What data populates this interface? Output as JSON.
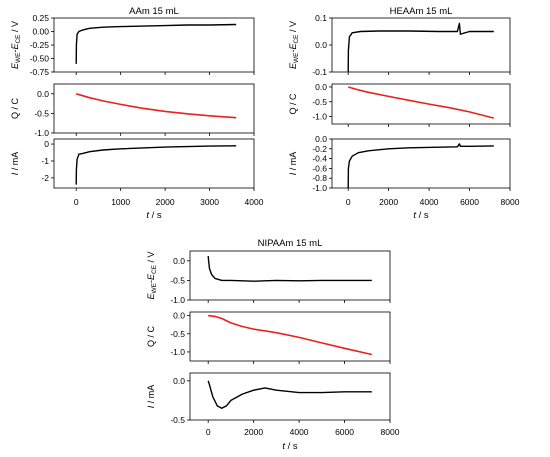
{
  "colors": {
    "potential": "#000000",
    "charge": "#e8231c",
    "current": "#000000",
    "axis": "#000000"
  },
  "chart_data": [
    {
      "title": "AAm 15 mL",
      "xlabel_italic": "t",
      "xlabel_unit": " / s",
      "xlim": [
        -500,
        4000
      ],
      "xticks": [
        0,
        1000,
        2000,
        3000,
        4000
      ],
      "xtick_labels": [
        "0",
        "1000",
        "2000",
        "3000",
        "4000"
      ],
      "panels": [
        {
          "type": "line",
          "quantity": "potential",
          "ylabel": {
            "E1": "E",
            "sub1": "WE",
            "dash": "-",
            "E2": "E",
            "sub2": "CE",
            "unit": " / V"
          },
          "ylim": [
            -0.75,
            0.25
          ],
          "yticks": [
            -0.75,
            -0.5,
            -0.25,
            0,
            0.25
          ],
          "ytick_labels": [
            "-0.75",
            "-0.50",
            "-0.25",
            "0.00",
            "0.25"
          ],
          "points": [
            [
              0,
              -0.6
            ],
            [
              5,
              -0.25
            ],
            [
              20,
              -0.05
            ],
            [
              60,
              0.0
            ],
            [
              150,
              0.03
            ],
            [
              300,
              0.06
            ],
            [
              600,
              0.08
            ],
            [
              1000,
              0.09
            ],
            [
              1500,
              0.1
            ],
            [
              2000,
              0.11
            ],
            [
              2500,
              0.12
            ],
            [
              3000,
              0.12
            ],
            [
              3600,
              0.13
            ]
          ]
        },
        {
          "type": "line",
          "quantity": "charge",
          "ylabel": {
            "text": "Q / C"
          },
          "ylim": [
            -1.0,
            0.25
          ],
          "yticks": [
            -1.0,
            -0.5,
            0.0
          ],
          "ytick_labels": [
            "-1.0",
            "-0.5",
            "0.0"
          ],
          "points": [
            [
              0,
              0.0
            ],
            [
              300,
              -0.1
            ],
            [
              600,
              -0.18
            ],
            [
              1000,
              -0.27
            ],
            [
              1500,
              -0.37
            ],
            [
              2000,
              -0.45
            ],
            [
              2500,
              -0.51
            ],
            [
              3000,
              -0.56
            ],
            [
              3600,
              -0.61
            ]
          ]
        },
        {
          "type": "line",
          "quantity": "current",
          "ylabel": {
            "I": "I",
            "unit": " / mA"
          },
          "ylim": [
            -2.6,
            0.3
          ],
          "yticks": [
            -2,
            -1,
            0
          ],
          "ytick_labels": [
            "-2",
            "-1",
            "0"
          ],
          "points": [
            [
              0,
              -2.4
            ],
            [
              5,
              -1.5
            ],
            [
              20,
              -0.9
            ],
            [
              60,
              -0.6
            ],
            [
              150,
              -0.55
            ],
            [
              300,
              -0.45
            ],
            [
              600,
              -0.35
            ],
            [
              1000,
              -0.28
            ],
            [
              2000,
              -0.18
            ],
            [
              3000,
              -0.12
            ],
            [
              3600,
              -0.1
            ]
          ]
        }
      ]
    },
    {
      "title": "HEAAm 15 mL",
      "xlabel_italic": "t",
      "xlabel_unit": " / s",
      "xlim": [
        -800,
        8000
      ],
      "xticks": [
        0,
        2000,
        4000,
        6000,
        8000
      ],
      "xtick_labels": [
        "0",
        "2000",
        "4000",
        "6000",
        "8000"
      ],
      "panels": [
        {
          "type": "line",
          "quantity": "potential",
          "ylabel": {
            "E1": "E",
            "sub1": "WE",
            "dash": "-",
            "E2": "E",
            "sub2": "CE",
            "unit": " / V"
          },
          "ylim": [
            -0.1,
            0.1
          ],
          "yticks": [
            -0.1,
            0.0,
            0.1
          ],
          "ytick_labels": [
            "-0.1",
            "0.0",
            "0.1"
          ],
          "points": [
            [
              0,
              -0.1
            ],
            [
              10,
              -0.02
            ],
            [
              60,
              0.03
            ],
            [
              200,
              0.045
            ],
            [
              600,
              0.05
            ],
            [
              1500,
              0.052
            ],
            [
              3000,
              0.052
            ],
            [
              4500,
              0.05
            ],
            [
              5400,
              0.05
            ],
            [
              5500,
              0.08
            ],
            [
              5550,
              0.04
            ],
            [
              6000,
              0.05
            ],
            [
              7200,
              0.05
            ]
          ]
        },
        {
          "type": "line",
          "quantity": "charge",
          "ylabel": {
            "text": "Q / C"
          },
          "ylim": [
            -1.25,
            0.1
          ],
          "yticks": [
            -1.0,
            -0.5,
            0.0
          ],
          "ytick_labels": [
            "-1.0",
            "-0.5",
            "0.0"
          ],
          "points": [
            [
              0,
              0.0
            ],
            [
              500,
              -0.1
            ],
            [
              1000,
              -0.18
            ],
            [
              2000,
              -0.32
            ],
            [
              3000,
              -0.45
            ],
            [
              4000,
              -0.58
            ],
            [
              5000,
              -0.7
            ],
            [
              6000,
              -0.84
            ],
            [
              7200,
              -1.05
            ]
          ]
        },
        {
          "type": "line",
          "quantity": "current",
          "ylabel": {
            "I": "I",
            "unit": " / mA"
          },
          "ylim": [
            -1.0,
            0.0
          ],
          "yticks": [
            -1.0,
            -0.8,
            -0.6,
            -0.4,
            -0.2,
            0.0
          ],
          "ytick_labels": [
            "-1.0",
            "-0.8",
            "-0.6",
            "-0.4",
            "-0.2",
            "0.0"
          ],
          "points": [
            [
              0,
              -1.0
            ],
            [
              10,
              -0.6
            ],
            [
              60,
              -0.45
            ],
            [
              200,
              -0.35
            ],
            [
              500,
              -0.28
            ],
            [
              1000,
              -0.24
            ],
            [
              2000,
              -0.2
            ],
            [
              3000,
              -0.18
            ],
            [
              5400,
              -0.16
            ],
            [
              5500,
              -0.1
            ],
            [
              5550,
              -0.15
            ],
            [
              6000,
              -0.15
            ],
            [
              7200,
              -0.14
            ]
          ]
        }
      ]
    },
    {
      "title": "NIPAAm 15 mL",
      "xlabel_italic": "t",
      "xlabel_unit": " / s",
      "xlim": [
        -800,
        8000
      ],
      "xticks": [
        0,
        2000,
        4000,
        6000,
        8000
      ],
      "xtick_labels": [
        "0",
        "2000",
        "4000",
        "6000",
        "8000"
      ],
      "panels": [
        {
          "type": "line",
          "quantity": "potential",
          "ylabel": {
            "E1": "E",
            "sub1": "WE",
            "dash": "-",
            "E2": "E",
            "sub2": "CE",
            "unit": " / V"
          },
          "ylim": [
            -1.0,
            0.25
          ],
          "yticks": [
            -1.0,
            -0.5,
            0.0
          ],
          "ytick_labels": [
            "-1.0",
            "-0.5",
            "0.0"
          ],
          "points": [
            [
              0,
              0.12
            ],
            [
              20,
              0.0
            ],
            [
              60,
              -0.2
            ],
            [
              150,
              -0.35
            ],
            [
              300,
              -0.45
            ],
            [
              600,
              -0.5
            ],
            [
              1000,
              -0.5
            ],
            [
              2000,
              -0.52
            ],
            [
              3000,
              -0.5
            ],
            [
              4000,
              -0.51
            ],
            [
              5000,
              -0.5
            ],
            [
              6000,
              -0.5
            ],
            [
              7200,
              -0.5
            ]
          ]
        },
        {
          "type": "line",
          "quantity": "charge",
          "ylabel": {
            "text": "Q / C"
          },
          "ylim": [
            -1.25,
            0.1
          ],
          "yticks": [
            -1.0,
            -0.5,
            0.0
          ],
          "ytick_labels": [
            "-1.0",
            "-0.5",
            "0.0"
          ],
          "points": [
            [
              0,
              0.0
            ],
            [
              300,
              -0.02
            ],
            [
              600,
              -0.08
            ],
            [
              1000,
              -0.2
            ],
            [
              1500,
              -0.3
            ],
            [
              2000,
              -0.37
            ],
            [
              3000,
              -0.47
            ],
            [
              4000,
              -0.6
            ],
            [
              5000,
              -0.75
            ],
            [
              6000,
              -0.9
            ],
            [
              7200,
              -1.07
            ]
          ]
        },
        {
          "type": "line",
          "quantity": "current",
          "ylabel": {
            "I": "I",
            "unit": " / mA"
          },
          "ylim": [
            -0.5,
            0.1
          ],
          "yticks": [
            -0.5,
            0.0
          ],
          "ytick_labels": [
            "-0.5",
            "0.0"
          ],
          "points": [
            [
              0,
              0.0
            ],
            [
              60,
              -0.05
            ],
            [
              200,
              -0.2
            ],
            [
              400,
              -0.32
            ],
            [
              600,
              -0.35
            ],
            [
              800,
              -0.32
            ],
            [
              1000,
              -0.25
            ],
            [
              1500,
              -0.17
            ],
            [
              2000,
              -0.12
            ],
            [
              2500,
              -0.09
            ],
            [
              3000,
              -0.12
            ],
            [
              4000,
              -0.15
            ],
            [
              5000,
              -0.15
            ],
            [
              6000,
              -0.14
            ],
            [
              7200,
              -0.14
            ]
          ]
        }
      ]
    }
  ]
}
